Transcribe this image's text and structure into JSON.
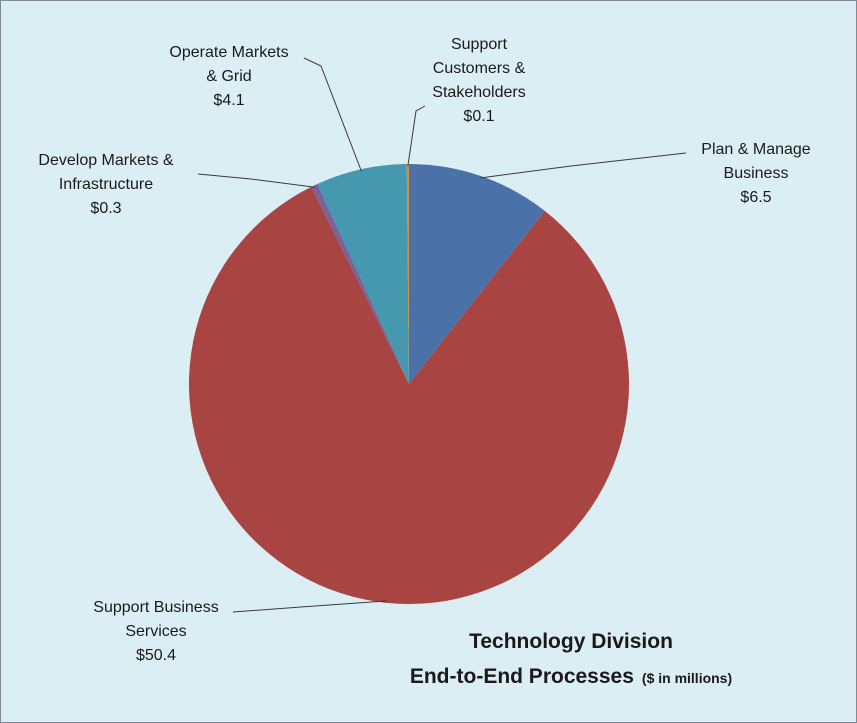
{
  "chart_data": {
    "type": "pie",
    "title": "Technology Division",
    "subtitle": "End-to-End Processes",
    "unit_note": "($ in millions)",
    "slices": [
      {
        "id": "plan",
        "label_lines": [
          "Plan & Manage",
          "Business"
        ],
        "value_label": "$6.5",
        "value": 6.5,
        "color": "#4a72a8"
      },
      {
        "id": "sbs",
        "label_lines": [
          "Support Business",
          "Services"
        ],
        "value_label": "$50.4",
        "value": 50.4,
        "color": "#a84441"
      },
      {
        "id": "dev",
        "label_lines": [
          "Develop Markets &",
          "Infrastructure"
        ],
        "value_label": "$0.3",
        "value": 0.3,
        "color": "#7b629b"
      },
      {
        "id": "ops",
        "label_lines": [
          "Operate Markets",
          "& Grid"
        ],
        "value_label": "$4.1",
        "value": 4.1,
        "color": "#4598ae"
      },
      {
        "id": "cust",
        "label_lines": [
          "Support",
          "Customers &",
          "Stakeholders"
        ],
        "value_label": "$0.1",
        "value": 0.1,
        "color": "#d98b3a"
      }
    ]
  }
}
